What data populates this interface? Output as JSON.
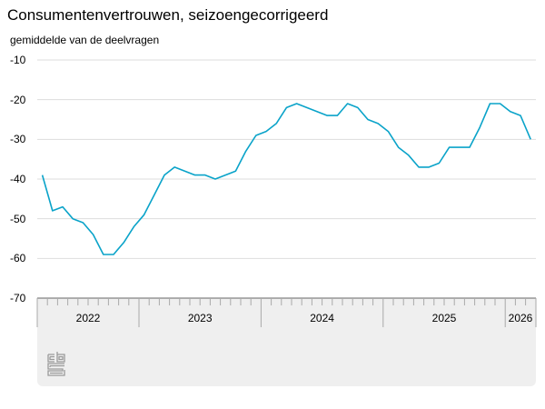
{
  "header": {
    "title": "Consumentenvertrouwen, seizoengecorrigeerd",
    "subtitle": "gemiddelde van de deelvragen"
  },
  "footer": {
    "logo": "cbs-logo-icon"
  },
  "colors": {
    "line": "#0aa3c9",
    "grid": "#dddddd",
    "axis": "#666666",
    "panel": "#efefef"
  },
  "chart_data": {
    "type": "line",
    "title": "Consumentenvertrouwen, seizoengecorrigeerd",
    "ylabel": "gemiddelde van de deelvragen",
    "xlabel": "",
    "ylim": [
      -70,
      -10
    ],
    "yticks": [
      -10,
      -20,
      -30,
      -40,
      -50,
      -60,
      -70
    ],
    "grid": true,
    "legend": null,
    "x_year_labels": [
      "2022",
      "2023",
      "2024",
      "2025",
      "2026"
    ],
    "x": [
      "2022-03",
      "2022-04",
      "2022-05",
      "2022-06",
      "2022-07",
      "2022-08",
      "2022-09",
      "2022-10",
      "2022-11",
      "2022-12",
      "2023-01",
      "2023-02",
      "2023-03",
      "2023-04",
      "2023-05",
      "2023-06",
      "2023-07",
      "2023-08",
      "2023-09",
      "2023-10",
      "2023-11",
      "2023-12",
      "2024-01",
      "2024-02",
      "2024-03",
      "2024-04",
      "2024-05",
      "2024-06",
      "2024-07",
      "2024-08",
      "2024-09",
      "2024-10",
      "2024-11",
      "2024-12",
      "2025-01",
      "2025-02",
      "2025-03",
      "2025-04",
      "2025-05",
      "2025-06",
      "2025-07",
      "2025-08",
      "2025-09",
      "2025-10",
      "2025-11",
      "2025-12",
      "2026-01",
      "2026-02",
      "2026-03"
    ],
    "series": [
      {
        "name": "Consumentenvertrouwen",
        "values": [
          -39,
          -48,
          -47,
          -50,
          -51,
          -54,
          -59,
          -59,
          -56,
          -52,
          -49,
          -44,
          -39,
          -37,
          -38,
          -39,
          -39,
          -40,
          -39,
          -38,
          -33,
          -29,
          -28,
          -26,
          -22,
          -21,
          -22,
          -23,
          -24,
          -24,
          -21,
          -22,
          -25,
          -26,
          -28,
          -32,
          -34,
          -37,
          -37,
          -36,
          -32,
          -32,
          -32,
          -27,
          -21,
          -21,
          -23,
          -24,
          -30
        ]
      }
    ]
  }
}
